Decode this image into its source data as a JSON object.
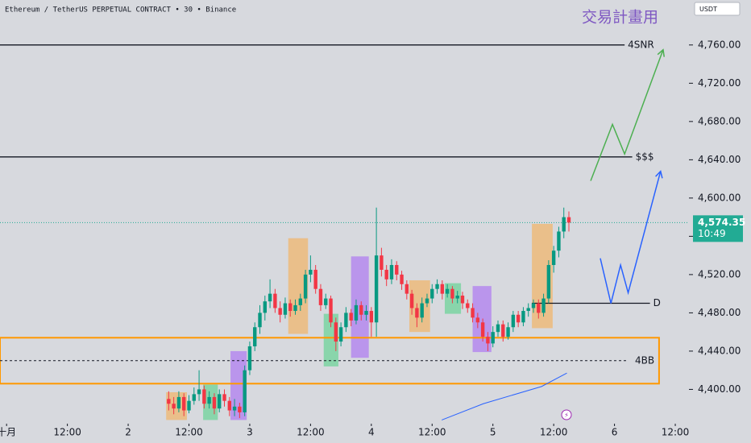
{
  "chart_data": {
    "type": "candlestick",
    "header": "Ethereum / TetherUS PERPETUAL CONTRACT • 30 • Binance",
    "title": "交易計畫用",
    "currency": "USDT",
    "xlim": [
      -1.3,
      134.7
    ],
    "ylim": [
      4365,
      4807
    ],
    "xticks": [
      {
        "value": 0,
        "label": "十月"
      },
      {
        "value": 12,
        "label": "12:00"
      },
      {
        "value": 24,
        "label": "2"
      },
      {
        "value": 36,
        "label": "12:00"
      },
      {
        "value": 48,
        "label": "3"
      },
      {
        "value": 60,
        "label": "12:00"
      },
      {
        "value": 72,
        "label": "4"
      },
      {
        "value": 84,
        "label": "12:00"
      },
      {
        "value": 96,
        "label": "5"
      },
      {
        "value": 108,
        "label": "12:00"
      },
      {
        "value": 120,
        "label": "6"
      },
      {
        "value": 132,
        "label": "12:00"
      }
    ],
    "yticks": [
      {
        "value": 4400,
        "label": "4,400.00"
      },
      {
        "value": 4440,
        "label": "4,440.00"
      },
      {
        "value": 4480,
        "label": "4,480.00"
      },
      {
        "value": 4520,
        "label": "4,520.00"
      },
      {
        "value": 4560,
        "label": "4,560.00"
      },
      {
        "value": 4600,
        "label": "4,600.00"
      },
      {
        "value": 4640,
        "label": "4,640.00"
      },
      {
        "value": 4680,
        "label": "4,680.00"
      },
      {
        "value": 4720,
        "label": "4,720.00"
      },
      {
        "value": 4760,
        "label": "4,760.00"
      }
    ],
    "up_color": "#089981",
    "down_color": "#f23645",
    "candle_start": 32,
    "candles": [
      [
        4390,
        4398,
        4378,
        4385
      ],
      [
        4385,
        4392,
        4374,
        4380
      ],
      [
        4380,
        4398,
        4376,
        4392
      ],
      [
        4392,
        4396,
        4372,
        4378
      ],
      [
        4378,
        4394,
        4375,
        4388
      ],
      [
        4388,
        4402,
        4384,
        4395
      ],
      [
        4395,
        4420,
        4388,
        4400
      ],
      [
        4400,
        4404,
        4380,
        4385
      ],
      [
        4385,
        4398,
        4380,
        4392
      ],
      [
        4392,
        4396,
        4374,
        4380
      ],
      [
        4380,
        4400,
        4376,
        4395
      ],
      [
        4395,
        4400,
        4382,
        4388
      ],
      [
        4388,
        4392,
        4372,
        4378
      ],
      [
        4378,
        4390,
        4372,
        4382
      ],
      [
        4382,
        4386,
        4370,
        4376
      ],
      [
        4376,
        4425,
        4372,
        4420
      ],
      [
        4420,
        4450,
        4415,
        4445
      ],
      [
        4445,
        4470,
        4440,
        4465
      ],
      [
        4465,
        4488,
        4458,
        4480
      ],
      [
        4480,
        4498,
        4472,
        4492
      ],
      [
        4492,
        4515,
        4485,
        4500
      ],
      [
        4500,
        4505,
        4480,
        4485
      ],
      [
        4485,
        4492,
        4470,
        4478
      ],
      [
        4478,
        4496,
        4474,
        4490
      ],
      [
        4490,
        4494,
        4476,
        4482
      ],
      [
        4482,
        4494,
        4478,
        4488
      ],
      [
        4488,
        4500,
        4482,
        4495
      ],
      [
        4495,
        4525,
        4490,
        4520
      ],
      [
        4520,
        4540,
        4512,
        4525
      ],
      [
        4525,
        4530,
        4500,
        4505
      ],
      [
        4505,
        4510,
        4482,
        4488
      ],
      [
        4488,
        4500,
        4484,
        4495
      ],
      [
        4495,
        4498,
        4465,
        4470
      ],
      [
        4470,
        4475,
        4440,
        4450
      ],
      [
        4450,
        4470,
        4445,
        4465
      ],
      [
        4465,
        4486,
        4460,
        4480
      ],
      [
        4480,
        4484,
        4466,
        4472
      ],
      [
        4472,
        4494,
        4468,
        4488
      ],
      [
        4488,
        4492,
        4472,
        4478
      ],
      [
        4478,
        4488,
        4472,
        4482
      ],
      [
        4482,
        4486,
        4455,
        4470
      ],
      [
        4470,
        4590,
        4455,
        4540
      ],
      [
        4540,
        4548,
        4518,
        4525
      ],
      [
        4525,
        4530,
        4508,
        4515
      ],
      [
        4515,
        4536,
        4510,
        4530
      ],
      [
        4530,
        4534,
        4514,
        4520
      ],
      [
        4520,
        4524,
        4504,
        4510
      ],
      [
        4510,
        4514,
        4494,
        4500
      ],
      [
        4500,
        4504,
        4478,
        4485
      ],
      [
        4485,
        4490,
        4465,
        4475
      ],
      [
        4475,
        4496,
        4470,
        4490
      ],
      [
        4490,
        4500,
        4486,
        4495
      ],
      [
        4495,
        4510,
        4490,
        4505
      ],
      [
        4505,
        4515,
        4500,
        4510
      ],
      [
        4510,
        4514,
        4494,
        4500
      ],
      [
        4500,
        4510,
        4496,
        4505
      ],
      [
        4505,
        4508,
        4490,
        4495
      ],
      [
        4495,
        4503,
        4490,
        4498
      ],
      [
        4498,
        4502,
        4484,
        4490
      ],
      [
        4490,
        4494,
        4480,
        4485
      ],
      [
        4485,
        4490,
        4470,
        4475
      ],
      [
        4475,
        4480,
        4464,
        4470
      ],
      [
        4470,
        4474,
        4450,
        4455
      ],
      [
        4455,
        4460,
        4440,
        4448
      ],
      [
        4448,
        4466,
        4444,
        4460
      ],
      [
        4460,
        4472,
        4455,
        4468
      ],
      [
        4468,
        4472,
        4450,
        4455
      ],
      [
        4455,
        4470,
        4452,
        4465
      ],
      [
        4465,
        4482,
        4460,
        4478
      ],
      [
        4478,
        4482,
        4465,
        4470
      ],
      [
        4470,
        4486,
        4466,
        4482
      ],
      [
        4482,
        4490,
        4476,
        4485
      ],
      [
        4485,
        4494,
        4480,
        4490
      ],
      [
        4490,
        4494,
        4474,
        4480
      ],
      [
        4480,
        4500,
        4476,
        4495
      ],
      [
        4495,
        4535,
        4490,
        4530
      ],
      [
        4530,
        4550,
        4522,
        4545
      ],
      [
        4545,
        4570,
        4538,
        4565
      ],
      [
        4565,
        4590,
        4558,
        4580
      ],
      [
        4580,
        4586,
        4565,
        4574.35
      ]
    ],
    "zones": [
      {
        "x": [
          31.5,
          35.6
        ],
        "y": [
          4368,
          4397
        ],
        "color": "#f0b56e"
      },
      {
        "x": [
          38.8,
          41.7
        ],
        "y": [
          4368,
          4405
        ],
        "color": "#6fd39a"
      },
      {
        "x": [
          44.2,
          47.4
        ],
        "y": [
          4368,
          4440
        ],
        "color": "#b07ef0"
      },
      {
        "x": [
          55.6,
          59.5
        ],
        "y": [
          4458,
          4558
        ],
        "color": "#f0b56e"
      },
      {
        "x": [
          62.6,
          65.5
        ],
        "y": [
          4424,
          4479
        ],
        "color": "#6fd39a"
      },
      {
        "x": [
          68,
          71.5
        ],
        "y": [
          4433,
          4539
        ],
        "color": "#b07ef0"
      },
      {
        "x": [
          79.5,
          83.6
        ],
        "y": [
          4460,
          4514
        ],
        "color": "#f0b56e"
      },
      {
        "x": [
          86.5,
          89.7
        ],
        "y": [
          4479,
          4511
        ],
        "color": "#6fd39a"
      },
      {
        "x": [
          92,
          95.7
        ],
        "y": [
          4439,
          4508
        ],
        "color": "#b07ef0"
      },
      {
        "x": [
          103.7,
          107.8
        ],
        "y": [
          4464,
          4573
        ],
        "color": "#f0b56e"
      }
    ],
    "levels": [
      {
        "label": "4SNR",
        "value": 4760,
        "x": [
          -1.3,
          122
        ]
      },
      {
        "label": "$$$",
        "value": 4643,
        "x": [
          -1.3,
          123.5
        ]
      },
      {
        "label": "D",
        "value": 4490,
        "x": [
          103.7,
          127
        ]
      }
    ],
    "box": {
      "label": "4BB",
      "y": [
        4406,
        4454
      ],
      "mid": 4430,
      "x": [
        -1.3,
        128.8
      ],
      "color": "#ff9800"
    },
    "drawings": [
      {
        "color": "#4caf50",
        "x": [
          115.3,
          119.6,
          122,
          129.6
        ],
        "y": [
          4618,
          4677,
          4646,
          4755
        ]
      },
      {
        "color": "#2962ff",
        "x": [
          117.2,
          119.3,
          121.2,
          122.7,
          129.1
        ],
        "y": [
          4537,
          4490,
          4530,
          4501,
          4628
        ]
      },
      {
        "color": "#2962ff",
        "x": [
          85.9,
          94.1,
          105.6,
          110.6
        ],
        "y": [
          4368,
          4385,
          4403,
          4417
        ]
      }
    ],
    "last_price": {
      "value": 4574.35,
      "label": "4,574.35"
    },
    "countdown": "10:49",
    "price_color": "#22ab94"
  }
}
